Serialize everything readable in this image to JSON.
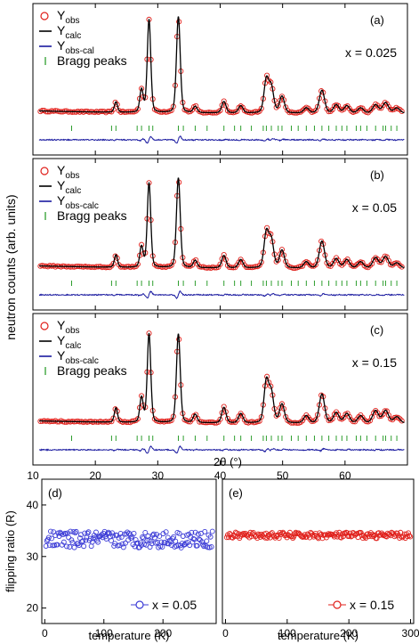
{
  "figure": {
    "ylabel_main": "neutron counts (arb. units)",
    "xlabel_main": "2θ (°)",
    "colors": {
      "obs": "#e0201b",
      "calc": "#000000",
      "diff": "#1a1aa0",
      "bragg": "#2e9e2e",
      "flip_a": "#3b3bd6",
      "flip_b": "#e0201b"
    }
  },
  "chart_data": [
    {
      "type": "line",
      "panel": "(a)",
      "label_value": "x = 0.025",
      "legend": [
        "Yobs",
        "Ycalc",
        "Yobs-cal",
        "Bragg peaks"
      ],
      "xlim": [
        10,
        70
      ],
      "xticks": [
        10,
        20,
        30,
        40,
        50,
        60
      ],
      "xticks_printed": false,
      "peaks": [
        [
          23.3,
          0.1
        ],
        [
          27.4,
          0.22
        ],
        [
          28.6,
          0.9
        ],
        [
          33.3,
          0.93
        ],
        [
          36.0,
          0.06
        ],
        [
          40.6,
          0.11
        ],
        [
          43.3,
          0.07
        ],
        [
          47.4,
          0.32
        ],
        [
          48.2,
          0.24
        ],
        [
          49.9,
          0.16
        ],
        [
          53.8,
          0.05
        ],
        [
          56.3,
          0.22
        ],
        [
          58.6,
          0.08
        ],
        [
          60.3,
          0.07
        ],
        [
          62.5,
          0.05
        ],
        [
          64.9,
          0.08
        ],
        [
          66.5,
          0.1
        ],
        [
          68.3,
          0.05
        ]
      ],
      "bragg_positions": [
        16.2,
        22.6,
        23.3,
        26.7,
        27.4,
        28.6,
        29.2,
        33.3,
        34.1,
        36.0,
        37.9,
        40.6,
        42.3,
        43.3,
        45.0,
        46.9,
        47.4,
        48.2,
        49.3,
        49.9,
        51.4,
        52.5,
        53.8,
        55.1,
        56.3,
        57.4,
        58.6,
        59.5,
        60.3,
        61.8,
        62.5,
        63.5,
        64.9,
        66.1,
        66.5,
        67.4,
        68.3
      ]
    },
    {
      "type": "line",
      "panel": "(b)",
      "label_value": "x = 0.05",
      "legend": [
        "Yobs",
        "Ycalc",
        "Yobs-calc",
        "Bragg peaks"
      ],
      "xlim": [
        10,
        70
      ],
      "xticks": [
        10,
        20,
        30,
        40,
        50,
        60
      ],
      "xticks_printed": false,
      "peaks": [
        [
          23.3,
          0.12
        ],
        [
          27.4,
          0.2
        ],
        [
          28.6,
          0.82
        ],
        [
          33.3,
          0.87
        ],
        [
          36.0,
          0.07
        ],
        [
          40.6,
          0.12
        ],
        [
          43.3,
          0.08
        ],
        [
          47.4,
          0.34
        ],
        [
          48.2,
          0.26
        ],
        [
          49.9,
          0.17
        ],
        [
          53.8,
          0.06
        ],
        [
          56.3,
          0.26
        ],
        [
          58.6,
          0.09
        ],
        [
          60.3,
          0.08
        ],
        [
          62.5,
          0.06
        ],
        [
          64.9,
          0.1
        ],
        [
          66.5,
          0.11
        ],
        [
          68.3,
          0.05
        ]
      ],
      "bragg_positions": [
        16.2,
        22.6,
        23.3,
        26.7,
        27.4,
        28.6,
        29.2,
        33.3,
        34.1,
        36.0,
        37.9,
        40.6,
        42.3,
        43.3,
        45.0,
        46.9,
        47.4,
        48.2,
        49.3,
        49.9,
        51.4,
        52.5,
        53.8,
        55.1,
        56.3,
        57.4,
        58.6,
        59.5,
        60.3,
        61.8,
        62.5,
        63.5,
        64.9,
        66.1,
        66.5,
        67.4,
        68.3
      ]
    },
    {
      "type": "line",
      "panel": "(c)",
      "label_value": "x = 0.15",
      "legend": [
        "Yobs",
        "Ycalc",
        "Yobs-calc",
        "Bragg peaks"
      ],
      "xlabel": "2θ (°)",
      "xlim": [
        10,
        70
      ],
      "xticks": [
        10,
        20,
        30,
        40,
        50,
        60
      ],
      "xticks_printed": true,
      "peaks": [
        [
          23.3,
          0.14
        ],
        [
          27.4,
          0.24
        ],
        [
          28.6,
          0.86
        ],
        [
          33.3,
          0.86
        ],
        [
          36.0,
          0.08
        ],
        [
          40.6,
          0.15
        ],
        [
          43.3,
          0.09
        ],
        [
          47.4,
          0.4
        ],
        [
          48.2,
          0.28
        ],
        [
          49.9,
          0.18
        ],
        [
          53.8,
          0.07
        ],
        [
          56.3,
          0.28
        ],
        [
          58.6,
          0.1
        ],
        [
          60.3,
          0.09
        ],
        [
          62.5,
          0.07
        ],
        [
          64.9,
          0.12
        ],
        [
          66.5,
          0.12
        ],
        [
          68.3,
          0.06
        ]
      ],
      "bragg_positions": [
        16.2,
        22.6,
        23.3,
        26.7,
        27.4,
        28.6,
        29.2,
        33.3,
        34.1,
        36.0,
        37.9,
        40.6,
        42.3,
        43.3,
        45.0,
        46.9,
        47.4,
        48.2,
        49.3,
        49.9,
        51.4,
        52.5,
        53.8,
        55.1,
        56.3,
        57.4,
        58.6,
        59.5,
        60.3,
        61.8,
        62.5,
        63.5,
        64.9,
        66.1,
        66.5,
        67.4,
        68.3
      ]
    },
    {
      "type": "scatter",
      "panel": "(d)",
      "ylabel": "flipping ratio (R)",
      "xlabel": "temperature (K)",
      "legend": [
        "x = 0.05"
      ],
      "xlim": [
        -5,
        290
      ],
      "ylim": [
        17,
        45
      ],
      "xticks": [
        0,
        100,
        200
      ],
      "yticks": [
        20,
        30,
        40
      ],
      "t_range": [
        2,
        285
      ],
      "mean": 33.3,
      "spread": 1.6
    },
    {
      "type": "scatter",
      "panel": "(e)",
      "xlabel": "temperature (K)",
      "legend": [
        "x = 0.15"
      ],
      "xlim": [
        -5,
        305
      ],
      "ylim": [
        17,
        45
      ],
      "xticks": [
        0,
        100,
        200,
        300
      ],
      "t_range": [
        2,
        300
      ],
      "mean": 34.1,
      "spread": 0.6
    }
  ]
}
